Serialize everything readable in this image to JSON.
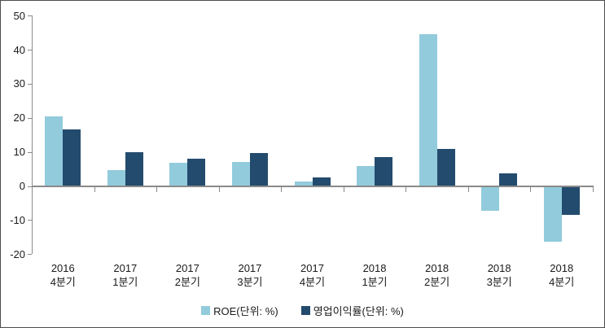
{
  "chart_data": {
    "type": "bar",
    "title": "",
    "xlabel": "",
    "ylabel": "",
    "categories": [
      [
        "2016",
        "4분기"
      ],
      [
        "2017",
        "1분기"
      ],
      [
        "2017",
        "2분기"
      ],
      [
        "2017",
        "3분기"
      ],
      [
        "2017",
        "4분기"
      ],
      [
        "2018",
        "1분기"
      ],
      [
        "2018",
        "2분기"
      ],
      [
        "2018",
        "3분기"
      ],
      [
        "2018",
        "4분기"
      ]
    ],
    "series": [
      {
        "name": "ROE(단위: %)",
        "color": "#92CBDC",
        "values": [
          20.4,
          4.6,
          6.7,
          7.1,
          1.3,
          5.9,
          44.5,
          -7.2,
          -16.4
        ]
      },
      {
        "name": "영업이익률(단위: %)",
        "color": "#234B6E",
        "values": [
          16.5,
          9.9,
          8.1,
          9.7,
          2.6,
          8.4,
          10.8,
          3.6,
          -8.6
        ]
      }
    ],
    "ylim": [
      -20,
      50
    ],
    "yticks": [
      50,
      40,
      30,
      20,
      10,
      0,
      -10,
      -20
    ],
    "grid": false,
    "legend_position": "bottom",
    "axis_color": "#8a8a8a",
    "text_color": "#1a1a1a"
  }
}
